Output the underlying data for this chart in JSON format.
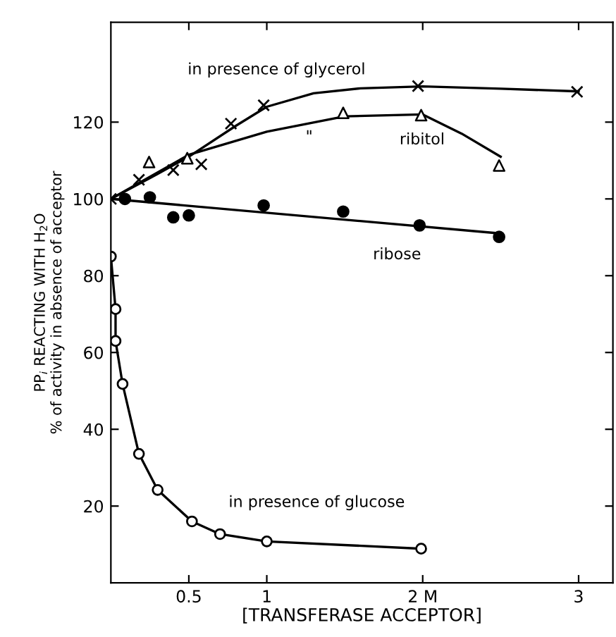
{
  "chart_data": {
    "type": "scatter",
    "xlabel": "[TRANSFERASE ACCEPTOR]",
    "ylabel": "PP$_{i}$ REACTING WITH H$_{2}$O\n% of activity in absence of acceptor",
    "xlim": [
      0,
      3.22
    ],
    "ylim": [
      0,
      146
    ],
    "xticks": [
      {
        "value": 0.5,
        "label": "0.5"
      },
      {
        "value": 1,
        "label": "1"
      },
      {
        "value": 2,
        "label": "2 M"
      },
      {
        "value": 3,
        "label": "3"
      }
    ],
    "yticks": [
      20,
      40,
      60,
      80,
      100,
      120
    ],
    "grid": false,
    "series": [
      {
        "name": "in presence of glycerol",
        "marker": "cross",
        "color": "#000000",
        "x": [
          0,
          0.18,
          0.4,
          0.58,
          0.77,
          0.98,
          1.97,
          2.99
        ],
        "values": [
          100,
          105,
          107.5,
          109,
          119.6,
          124.4,
          129.4,
          127.9
        ]
      },
      {
        "type": "line",
        "color": "#000000",
        "x": [
          0,
          0.3,
          0.5,
          0.8,
          1.0,
          1.3,
          1.6,
          2.0,
          2.5,
          3.0
        ],
        "values": [
          100,
          106.5,
          111,
          119,
          124,
          127.5,
          128.8,
          129.3,
          128.7,
          128
        ]
      },
      {
        "name": "ribitol",
        "marker": "triangle",
        "color": "#ffffff",
        "x": [
          0.245,
          0.49,
          1.49,
          1.99,
          2.49
        ],
        "values": [
          109.6,
          110.6,
          122.4,
          121.8,
          108.7
        ]
      },
      {
        "type": "line",
        "color": "#000000",
        "x": [
          0,
          0.5,
          1.0,
          1.5,
          2.0,
          2.25,
          2.5
        ],
        "values": [
          100,
          111.5,
          117.5,
          121.5,
          122,
          117,
          111
        ]
      },
      {
        "name": "ribose",
        "marker": "circle",
        "color": "#000000",
        "x": [
          0.09,
          0.25,
          0.4,
          0.5,
          0.98,
          1.49,
          1.98,
          2.49
        ],
        "values": [
          100,
          100.4,
          95.2,
          95.7,
          98.3,
          96.7,
          93.1,
          90.1
        ]
      },
      {
        "type": "line",
        "color": "#000000",
        "x": [
          0,
          2.5
        ],
        "values": [
          100,
          91
        ]
      },
      {
        "name": "in presence of glucose",
        "type": "line",
        "marker": "circle",
        "color": "#ffffff",
        "x": [
          0,
          0.03,
          0.03,
          0.075,
          0.18,
          0.3,
          0.52,
          0.7,
          1.0,
          1.99
        ],
        "values": [
          85,
          71.3,
          63,
          51.8,
          33.6,
          24.2,
          16,
          12.7,
          10.8,
          8.9
        ]
      }
    ],
    "annotations": [
      "\""
    ]
  }
}
